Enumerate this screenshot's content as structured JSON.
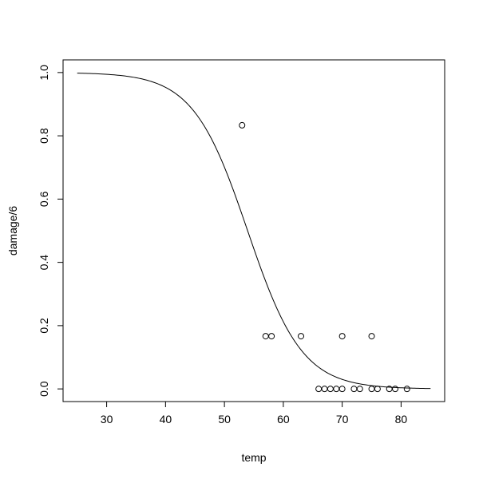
{
  "chart_data": {
    "type": "scatter",
    "xlabel": "temp",
    "ylabel": "damage/6",
    "xlim": [
      22.6,
      87.4
    ],
    "ylim": [
      -0.04,
      1.04
    ],
    "x_ticks": [
      30,
      40,
      50,
      60,
      70,
      80
    ],
    "y_ticks": [
      0.0,
      0.2,
      0.4,
      0.6,
      0.8,
      1.0
    ],
    "x_tick_labels": [
      "30",
      "40",
      "50",
      "60",
      "70",
      "80"
    ],
    "y_tick_labels": [
      "0.0",
      "0.2",
      "0.4",
      "0.6",
      "0.8",
      "1.0"
    ],
    "grid": false,
    "points": [
      {
        "x": 53,
        "y": 0.8333
      },
      {
        "x": 57,
        "y": 0.1667
      },
      {
        "x": 58,
        "y": 0.1667
      },
      {
        "x": 63,
        "y": 0.1667
      },
      {
        "x": 66,
        "y": 0.0
      },
      {
        "x": 67,
        "y": 0.0
      },
      {
        "x": 68,
        "y": 0.0
      },
      {
        "x": 69,
        "y": 0.0
      },
      {
        "x": 70,
        "y": 0.0
      },
      {
        "x": 70,
        "y": 0.1667
      },
      {
        "x": 72,
        "y": 0.0
      },
      {
        "x": 73,
        "y": 0.0
      },
      {
        "x": 75,
        "y": 0.0
      },
      {
        "x": 75,
        "y": 0.1667
      },
      {
        "x": 76,
        "y": 0.0
      },
      {
        "x": 78,
        "y": 0.0
      },
      {
        "x": 79,
        "y": 0.0
      },
      {
        "x": 81,
        "y": 0.0
      }
    ],
    "curve": {
      "type": "logistic",
      "intercept": 11.66299,
      "slope": -0.21623,
      "x_range": [
        25,
        85
      ]
    }
  }
}
